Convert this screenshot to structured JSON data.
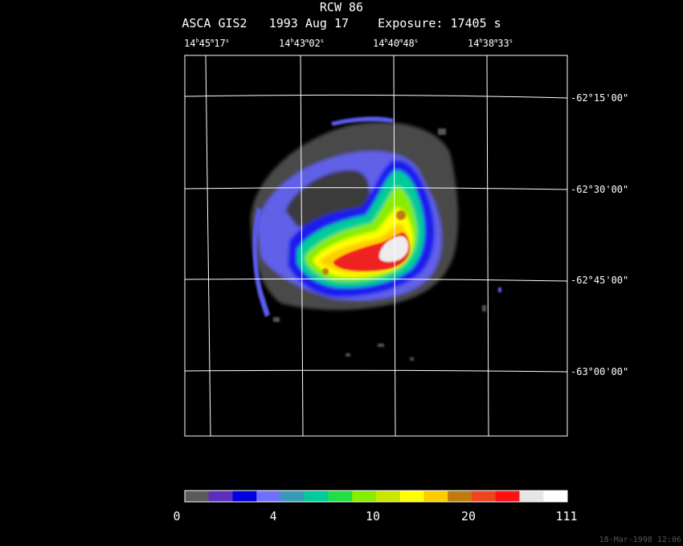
{
  "chart_data": {
    "type": "heatmap",
    "title": "RCW 86",
    "subtitle_parts": [
      "ASCA GIS2",
      "1993 Aug 17",
      "Exposure: 17405 s"
    ],
    "ra_ticks": [
      {
        "h": "14",
        "m": "45",
        "s": "17"
      },
      {
        "h": "14",
        "m": "43",
        "s": "02"
      },
      {
        "h": "14",
        "m": "40",
        "s": "48"
      },
      {
        "h": "14",
        "m": "38",
        "s": "33"
      }
    ],
    "dec_ticks": [
      "-62°15'00\"",
      "-62°30'00\"",
      "-62°45'00\"",
      "-63°00'00\""
    ],
    "colorbar": {
      "colors": [
        "#5a5a5a",
        "#5a2fc0",
        "#0000e0",
        "#7070ff",
        "#3a9bb8",
        "#00cc99",
        "#22dd44",
        "#88ee00",
        "#c8e600",
        "#ffff00",
        "#ffcc00",
        "#c07a10",
        "#ee4422",
        "#ff1111",
        "#e6e6e6",
        "#ffffff"
      ],
      "labels": [
        "0",
        "4",
        "10",
        "20",
        "111"
      ]
    },
    "footer": "18-Mar-1998 12:06"
  }
}
